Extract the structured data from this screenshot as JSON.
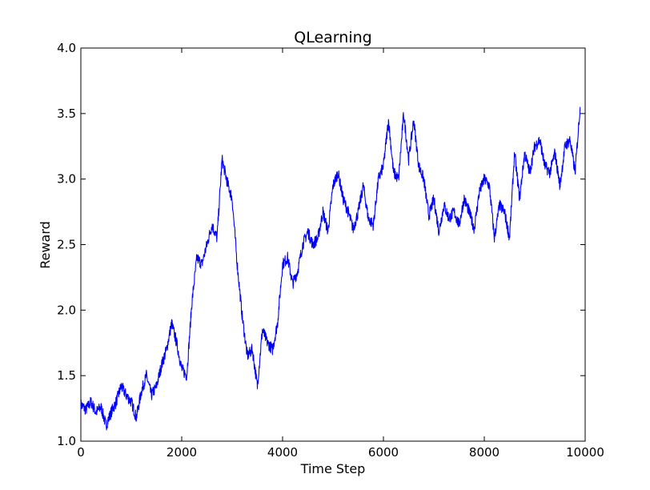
{
  "chart_data": {
    "type": "line",
    "title": "QLearning",
    "xlabel": "Time Step",
    "ylabel": "Reward",
    "xlim": [
      0,
      10000
    ],
    "ylim": [
      1.0,
      4.0
    ],
    "xticks": [
      0,
      2000,
      4000,
      6000,
      8000,
      10000
    ],
    "xtick_labels": [
      "0",
      "2000",
      "4000",
      "6000",
      "8000",
      "10000"
    ],
    "yticks": [
      1.0,
      1.5,
      2.0,
      2.5,
      3.0,
      3.5,
      4.0
    ],
    "ytick_labels": [
      "1.0",
      "1.5",
      "2.0",
      "2.5",
      "3.0",
      "3.5",
      "4.0"
    ],
    "grid": false,
    "legend": "none",
    "series": [
      {
        "color": "#0000ff",
        "x": [
          0,
          100,
          200,
          300,
          400,
          500,
          600,
          700,
          800,
          900,
          1000,
          1100,
          1200,
          1300,
          1400,
          1500,
          1600,
          1700,
          1800,
          1900,
          2000,
          2100,
          2200,
          2300,
          2400,
          2500,
          2600,
          2700,
          2800,
          2900,
          3000,
          3100,
          3200,
          3300,
          3400,
          3500,
          3600,
          3700,
          3800,
          3900,
          4000,
          4100,
          4200,
          4300,
          4400,
          4500,
          4600,
          4700,
          4800,
          4900,
          5000,
          5100,
          5200,
          5300,
          5400,
          5500,
          5600,
          5700,
          5800,
          5900,
          6000,
          6100,
          6200,
          6300,
          6400,
          6500,
          6600,
          6700,
          6800,
          6900,
          7000,
          7100,
          7200,
          7300,
          7400,
          7500,
          7600,
          7700,
          7800,
          7900,
          8000,
          8100,
          8200,
          8300,
          8400,
          8500,
          8600,
          8700,
          8800,
          8900,
          9000,
          9100,
          9200,
          9300,
          9400,
          9500,
          9600,
          9700,
          9800,
          9900
        ],
        "y": [
          1.28,
          1.24,
          1.3,
          1.22,
          1.26,
          1.12,
          1.22,
          1.3,
          1.42,
          1.35,
          1.3,
          1.18,
          1.38,
          1.5,
          1.35,
          1.42,
          1.58,
          1.7,
          1.9,
          1.75,
          1.55,
          1.5,
          2.05,
          2.4,
          2.35,
          2.5,
          2.65,
          2.55,
          3.15,
          2.98,
          2.85,
          2.35,
          1.95,
          1.65,
          1.7,
          1.42,
          1.85,
          1.75,
          1.7,
          1.9,
          2.35,
          2.4,
          2.2,
          2.3,
          2.5,
          2.6,
          2.5,
          2.55,
          2.75,
          2.6,
          2.95,
          3.05,
          2.85,
          2.75,
          2.62,
          2.75,
          2.95,
          2.7,
          2.65,
          3.0,
          3.1,
          3.45,
          3.05,
          3.0,
          3.5,
          3.15,
          3.45,
          3.1,
          3.0,
          2.72,
          2.85,
          2.6,
          2.8,
          2.7,
          2.75,
          2.65,
          2.85,
          2.75,
          2.62,
          2.9,
          3.0,
          2.95,
          2.55,
          2.8,
          2.75,
          2.55,
          3.2,
          2.85,
          3.2,
          3.05,
          3.25,
          3.3,
          3.1,
          3.05,
          3.2,
          2.95,
          3.25,
          3.3,
          3.05,
          3.55
        ]
      }
    ]
  }
}
